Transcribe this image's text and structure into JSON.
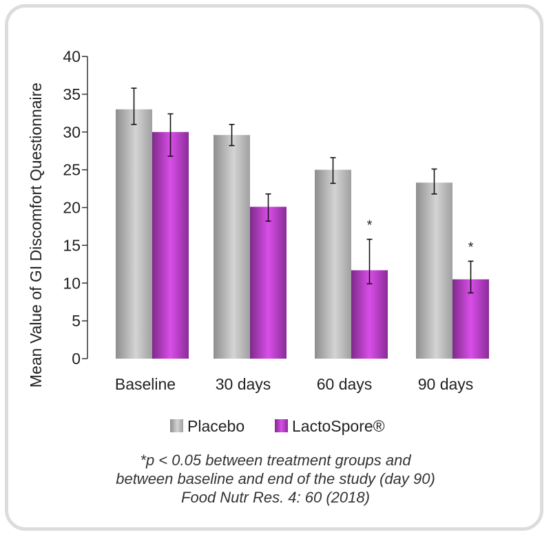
{
  "chart_data": {
    "type": "bar",
    "ylabel": "Mean Value of GI Discomfort Questionnaire",
    "xlabel": "",
    "ylim": [
      0,
      40
    ],
    "yticks": [
      0,
      5,
      10,
      15,
      20,
      25,
      30,
      35,
      40
    ],
    "categories": [
      "Baseline",
      "30 days",
      "60 days",
      "90 days"
    ],
    "series": [
      {
        "name": "Placebo",
        "color": "#a9a9a9",
        "values": [
          33.0,
          29.6,
          25.0,
          23.3
        ],
        "error_low": [
          31.0,
          28.2,
          23.2,
          21.8
        ],
        "error_high": [
          35.8,
          31.0,
          26.6,
          25.1
        ]
      },
      {
        "name": "LactoSpore®",
        "color": "#9b30a8",
        "values": [
          30.0,
          20.1,
          11.7,
          10.5
        ],
        "error_low": [
          26.8,
          18.2,
          9.9,
          8.7
        ],
        "error_high": [
          32.4,
          21.8,
          15.8,
          12.9
        ]
      }
    ],
    "annotations": [
      {
        "category": "60 days",
        "series": "LactoSpore®",
        "text": "*"
      },
      {
        "category": "90 days",
        "series": "LactoSpore®",
        "text": "*"
      }
    ],
    "legend_position": "bottom",
    "grid": false
  },
  "footnote": {
    "line1": "*p < 0.05 between treatment groups and",
    "line2": "between baseline and end of the study (day 90)",
    "line3": "Food Nutr Res. 4: 60 (2018)"
  }
}
